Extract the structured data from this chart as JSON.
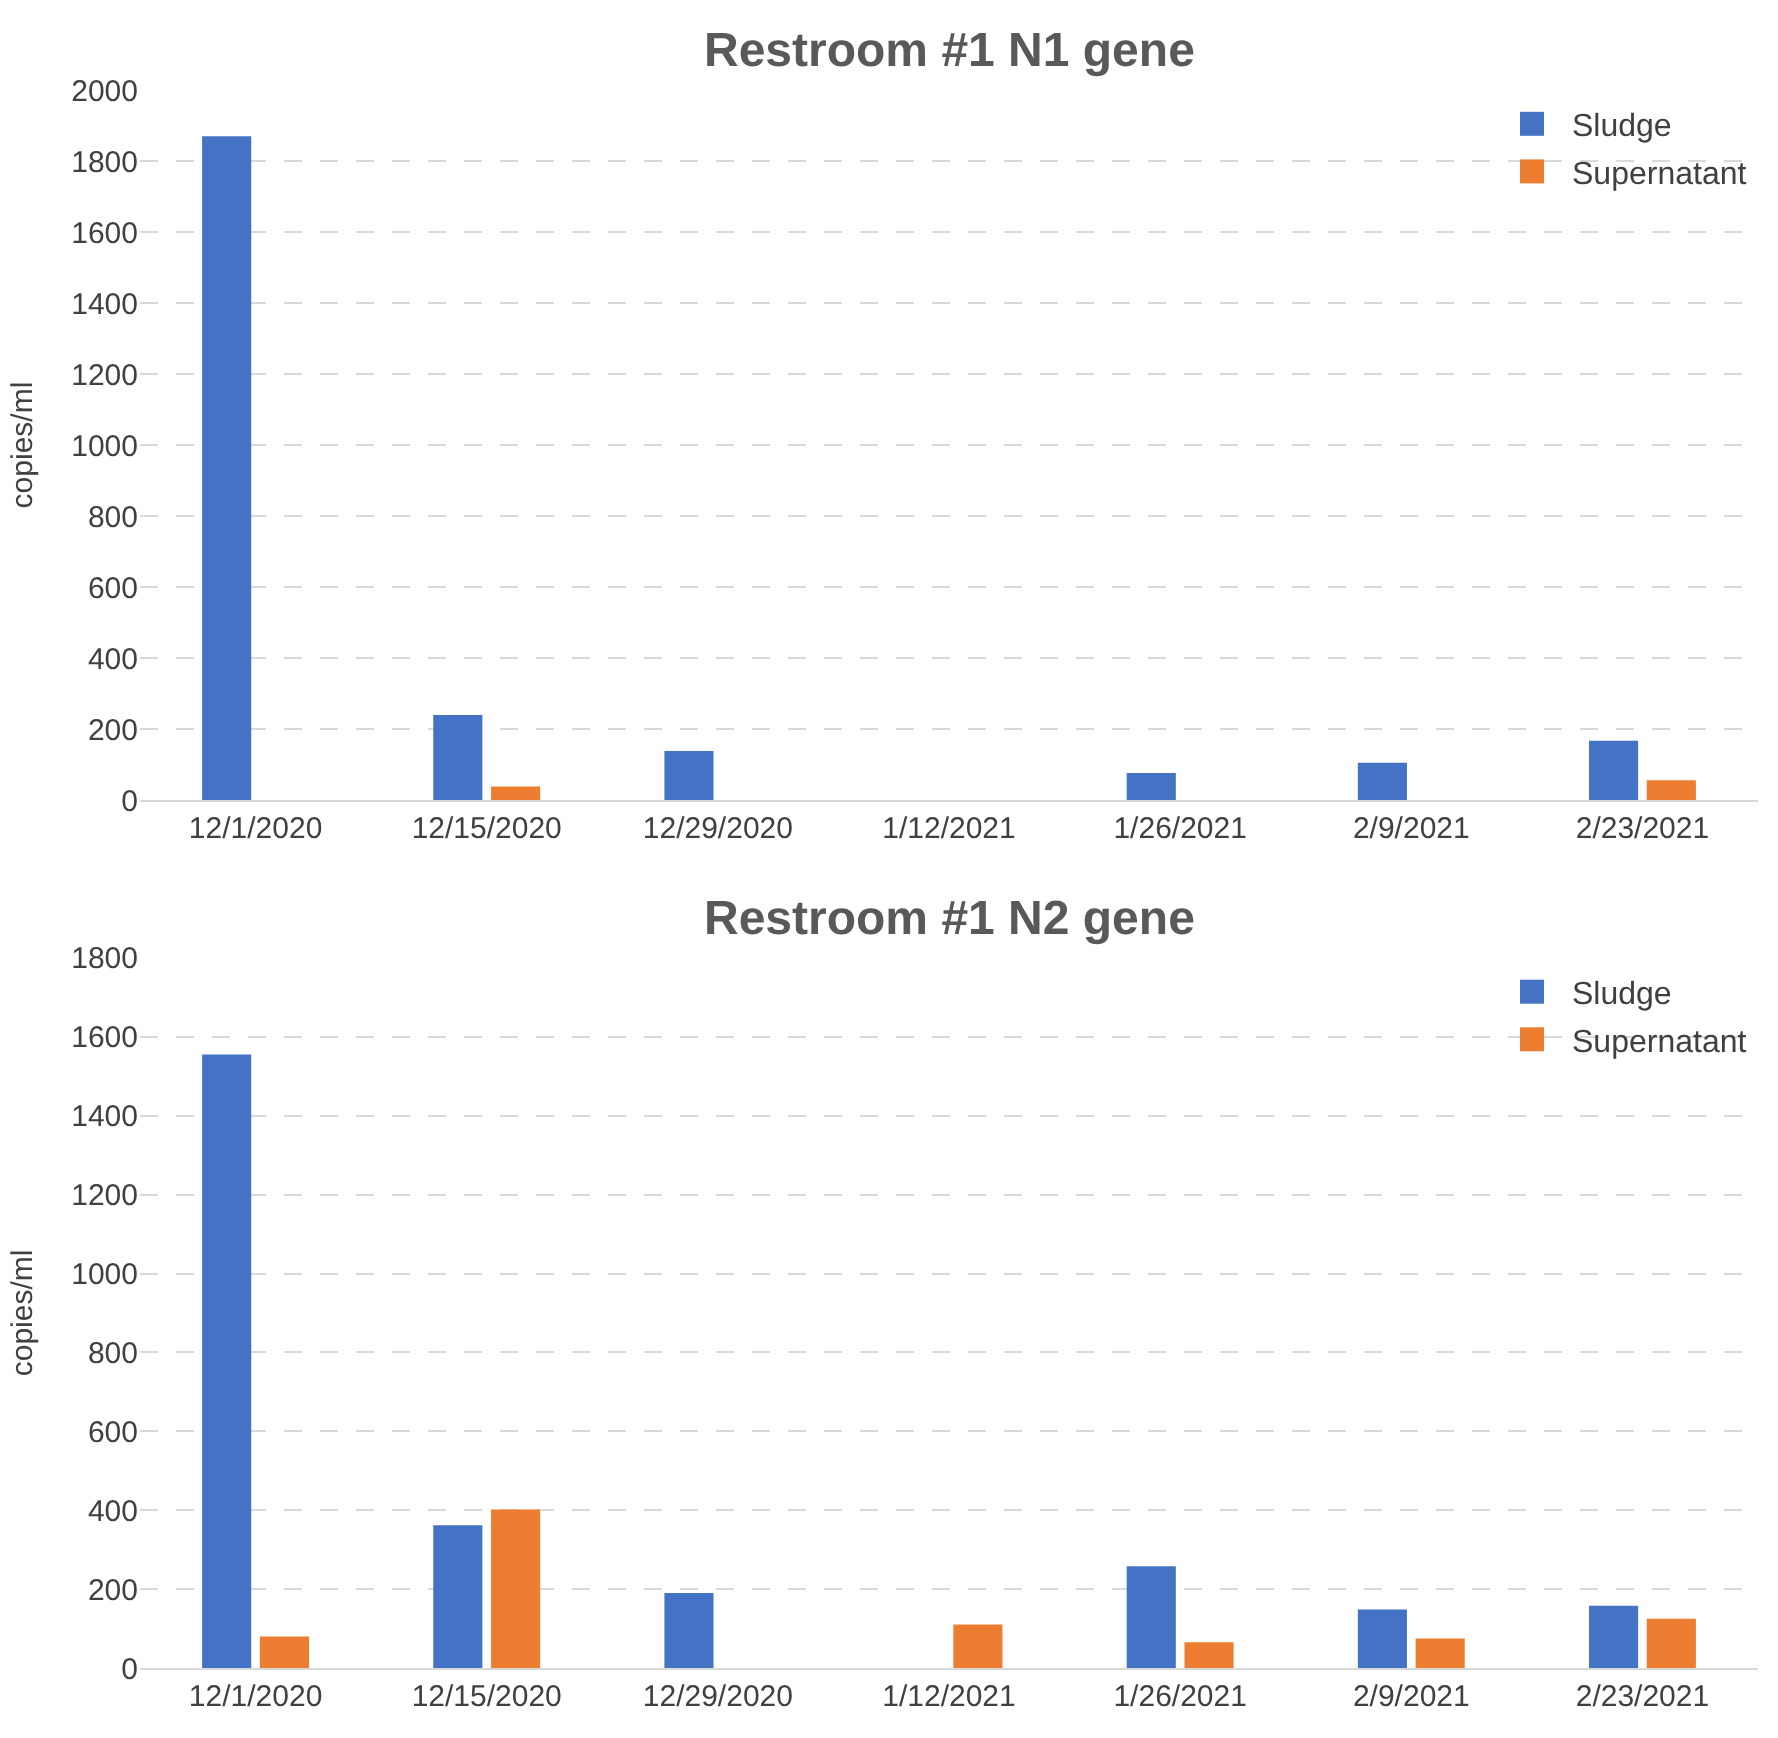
{
  "chart_data": [
    {
      "type": "bar",
      "title": "Restroom #1 N1 gene",
      "ylabel": "copies/ml",
      "categories": [
        "12/1/2020",
        "12/15/2020",
        "12/29/2020",
        "1/12/2021",
        "1/26/2021",
        "2/9/2021",
        "2/23/2021"
      ],
      "series": [
        {
          "name": "Sludge",
          "color": "#4472c4",
          "values": [
            1870,
            240,
            138,
            0,
            76,
            105,
            167
          ]
        },
        {
          "name": "Supernatant",
          "color": "#ed7d31",
          "values": [
            0,
            38,
            0,
            0,
            0,
            0,
            56
          ]
        }
      ],
      "ylim": [
        0,
        2000
      ],
      "yticks": [
        0,
        200,
        400,
        600,
        800,
        1000,
        1200,
        1400,
        1600,
        1800,
        2000
      ],
      "grid": "y",
      "legend": "top right"
    },
    {
      "type": "bar",
      "title": "Restroom #1 N2 gene",
      "ylabel": "copies/ml",
      "categories": [
        "12/1/2020",
        "12/15/2020",
        "12/29/2020",
        "1/12/2021",
        "1/26/2021",
        "2/9/2021",
        "2/23/2021"
      ],
      "series": [
        {
          "name": "Sludge",
          "color": "#4472c4",
          "values": [
            1555,
            362,
            190,
            0,
            258,
            148,
            158
          ]
        },
        {
          "name": "Supernatant",
          "color": "#ed7d31",
          "values": [
            80,
            402,
            0,
            110,
            65,
            75,
            125
          ]
        }
      ],
      "ylim": [
        0,
        1800
      ],
      "yticks": [
        0,
        200,
        400,
        600,
        800,
        1000,
        1200,
        1400,
        1600,
        1800
      ],
      "grid": "y",
      "legend": "top right"
    }
  ]
}
